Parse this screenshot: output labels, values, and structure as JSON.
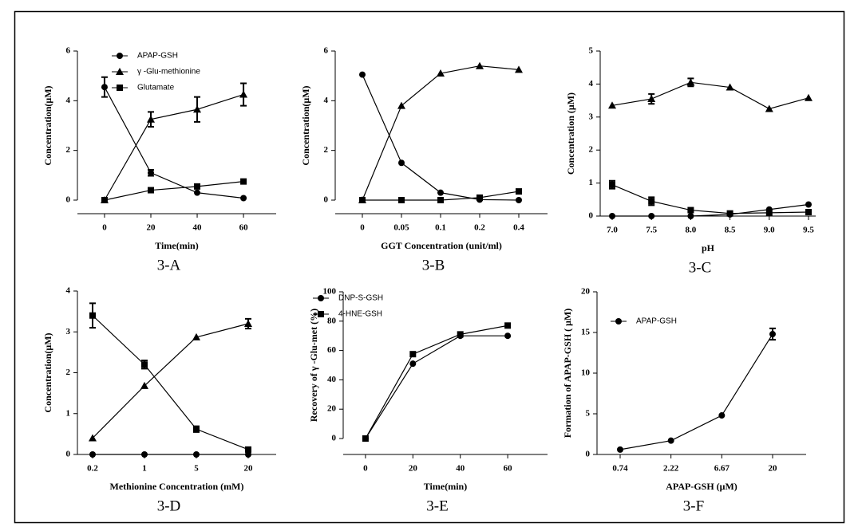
{
  "chart_data": [
    {
      "type": "line",
      "label": "3-A",
      "x_label": "Time(min)",
      "y_label": "Concentration(μM)",
      "x": [
        0,
        20,
        40,
        60
      ],
      "xlim": [
        -11.7,
        74.1
      ],
      "xticks": [
        0,
        20,
        40,
        60
      ],
      "ylim": [
        0,
        6
      ],
      "yticks": [
        0,
        2,
        4,
        6
      ],
      "series": [
        {
          "name": "APAP-GSH",
          "marker": "circle",
          "color": "#000000",
          "values": [
            4.55,
            1.1,
            0.3,
            0.08
          ],
          "errors": [
            0.4,
            0.12,
            null,
            null
          ]
        },
        {
          "name": "γ -Glu-methionine",
          "marker": "triangle",
          "color": "#000000",
          "values": [
            0,
            3.25,
            3.65,
            4.25
          ],
          "errors": [
            null,
            0.3,
            0.5,
            0.45
          ]
        },
        {
          "name": "Glutamate",
          "marker": "square",
          "color": "#000000",
          "values": [
            0,
            0.4,
            0.55,
            0.75
          ],
          "errors": [
            null,
            null,
            null,
            null
          ]
        }
      ]
    },
    {
      "type": "line",
      "label": "3-B",
      "x_label": "GGT Concentration (unit/ml)",
      "y_label": "Concentration(μM)",
      "categories": [
        "0",
        "0.05",
        "0.1",
        "0.2",
        "0.4"
      ],
      "ylim": [
        0,
        6
      ],
      "yticks": [
        0,
        2,
        4,
        6
      ],
      "series": [
        {
          "marker": "circle",
          "color": "#000000",
          "values": [
            5.05,
            1.5,
            0.3,
            0.02,
            0
          ],
          "errors": [
            null,
            null,
            null,
            null,
            null
          ]
        },
        {
          "marker": "triangle",
          "color": "#000000",
          "values": [
            0,
            3.8,
            5.1,
            5.4,
            5.25
          ],
          "errors": [
            null,
            null,
            null,
            null,
            null
          ]
        },
        {
          "marker": "square",
          "color": "#000000",
          "values": [
            0,
            0,
            0,
            0.1,
            0.35
          ],
          "errors": [
            null,
            null,
            null,
            null,
            null
          ]
        }
      ]
    },
    {
      "type": "line",
      "label": "3-C",
      "x_label": "pH",
      "y_label": "Concentration (μM)",
      "categories": [
        "7.0",
        "7.5",
        "8.0",
        "8.5",
        "9.0",
        "9.5"
      ],
      "ylim": [
        0,
        5
      ],
      "yticks": [
        0,
        1,
        2,
        3,
        4,
        5
      ],
      "series": [
        {
          "marker": "triangle",
          "color": "#000000",
          "values": [
            3.35,
            3.55,
            4.05,
            3.9,
            3.25,
            3.58
          ],
          "errors": [
            null,
            0.15,
            0.12,
            null,
            null,
            null
          ]
        },
        {
          "marker": "circle",
          "color": "#000000",
          "values": [
            0,
            0,
            0,
            0.05,
            0.2,
            0.35
          ],
          "errors": [
            null,
            null,
            null,
            null,
            null,
            null
          ]
        },
        {
          "marker": "square",
          "color": "#000000",
          "values": [
            0.95,
            0.45,
            0.18,
            0.08,
            0.1,
            0.12
          ],
          "errors": [
            0.12,
            0.12,
            null,
            null,
            null,
            null
          ]
        }
      ]
    },
    {
      "type": "line",
      "label": "3-D",
      "x_label": "Methionine Concentration (mM)",
      "y_label": "Concentration(μM)",
      "categories": [
        "0.2",
        "1",
        "5",
        "20"
      ],
      "ylim": [
        0,
        4
      ],
      "yticks": [
        0,
        1,
        2,
        3,
        4
      ],
      "series": [
        {
          "marker": "square",
          "color": "#000000",
          "values": [
            3.4,
            2.2,
            0.62,
            0.12
          ],
          "errors": [
            0.3,
            0.1,
            0.07,
            null
          ]
        },
        {
          "marker": "triangle",
          "color": "#000000",
          "values": [
            0.4,
            1.68,
            2.87,
            3.2
          ],
          "errors": [
            null,
            null,
            null,
            0.12
          ]
        },
        {
          "marker": "circle",
          "color": "#000000",
          "values": [
            0,
            0,
            0,
            0
          ],
          "errors": [
            null,
            null,
            null,
            null
          ]
        }
      ]
    },
    {
      "type": "line",
      "label": "3-E",
      "x_label": "Time(min)",
      "y_label": "Recovery of γ -Glu-met (%)",
      "x": [
        0,
        20,
        40,
        60
      ],
      "xlim": [
        -9.4,
        76.8
      ],
      "xticks": [
        0,
        20,
        40,
        60
      ],
      "ylim": [
        0,
        100
      ],
      "yticks": [
        0,
        20,
        40,
        60,
        80,
        100
      ],
      "series": [
        {
          "name": "DNP-S-GSH",
          "marker": "circle",
          "color": "#000000",
          "values": [
            0,
            51,
            70,
            70
          ],
          "errors": [
            null,
            null,
            null,
            null
          ]
        },
        {
          "name": "4-HNE-GSH",
          "marker": "square",
          "color": "#000000",
          "values": [
            0,
            57.5,
            71,
            77
          ],
          "errors": [
            null,
            null,
            null,
            null
          ]
        }
      ]
    },
    {
      "type": "line",
      "label": "3-F",
      "x_label": "APAP-GSH (μM)",
      "y_label": "Formation of APAP-GSH ( μM)",
      "categories": [
        "0.74",
        "2.22",
        "6.67",
        "20"
      ],
      "ylim": [
        0,
        20
      ],
      "yticks": [
        0,
        5,
        10,
        15,
        20
      ],
      "series": [
        {
          "name": "APAP-GSH",
          "marker": "circle",
          "color": "#000000",
          "values": [
            0.6,
            1.7,
            4.8,
            14.8
          ],
          "errors": [
            null,
            null,
            null,
            0.7
          ]
        }
      ]
    }
  ]
}
